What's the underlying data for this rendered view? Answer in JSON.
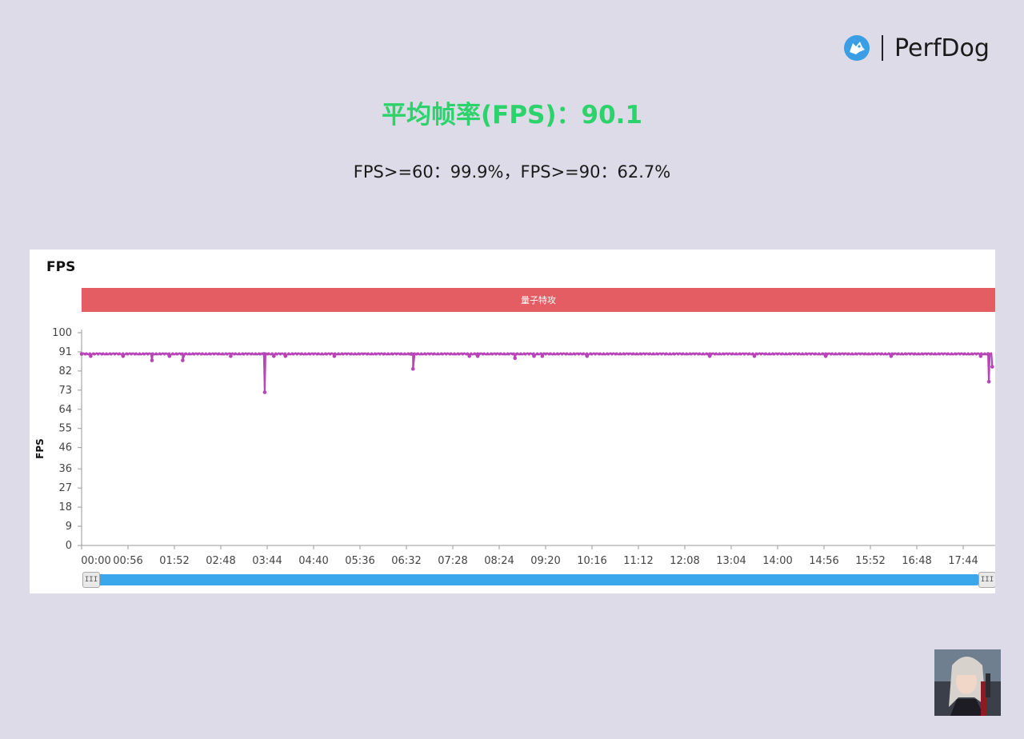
{
  "brand": {
    "name": "PerfDog",
    "icon": "perfdog-dog-icon",
    "icon_color": "#3a9ee4"
  },
  "summary": {
    "headline": "平均帧率(FPS)：90.1",
    "stats": "FPS>=60：99.9%，FPS>=90：62.7%"
  },
  "panel": {
    "title": "FPS",
    "scene_label": "量子特攻",
    "scene_color": "#e45d62"
  },
  "slider": {
    "left_handle": "III",
    "right_handle": "III",
    "range_start": 0,
    "range_end": 1
  },
  "game_avatar": {
    "icon": "game-character-avatar"
  },
  "chart_data": {
    "type": "line",
    "title": "FPS",
    "xlabel": "",
    "ylabel": "FPS",
    "ylim": [
      0,
      100
    ],
    "yticks": [
      "0",
      "9",
      "18",
      "27",
      "36",
      "46",
      "55",
      "64",
      "73",
      "82",
      "91",
      "100"
    ],
    "xticks": [
      "00:00",
      "00:56",
      "01:52",
      "02:48",
      "03:44",
      "04:40",
      "05:36",
      "06:32",
      "07:28",
      "08:24",
      "09:20",
      "10:16",
      "11:12",
      "12:08",
      "13:04",
      "14:00",
      "14:56",
      "15:52",
      "16:48",
      "17:44"
    ],
    "x_range_seconds": [
      0,
      1099
    ],
    "series": [
      {
        "color": "#b845b8",
        "baseline": 90,
        "points": [
          {
            "t": 0,
            "y": 90
          },
          {
            "t": 11,
            "y": 89
          },
          {
            "t": 50,
            "y": 89
          },
          {
            "t": 85,
            "y": 87
          },
          {
            "t": 106,
            "y": 89
          },
          {
            "t": 122,
            "y": 87
          },
          {
            "t": 180,
            "y": 89
          },
          {
            "t": 220,
            "y": 90
          },
          {
            "t": 221,
            "y": 72
          },
          {
            "t": 232,
            "y": 89
          },
          {
            "t": 246,
            "y": 89
          },
          {
            "t": 305,
            "y": 89
          },
          {
            "t": 398,
            "y": 90
          },
          {
            "t": 400,
            "y": 83
          },
          {
            "t": 468,
            "y": 89
          },
          {
            "t": 478,
            "y": 89
          },
          {
            "t": 523,
            "y": 88
          },
          {
            "t": 546,
            "y": 89
          },
          {
            "t": 556,
            "y": 89
          },
          {
            "t": 610,
            "y": 89
          },
          {
            "t": 758,
            "y": 89
          },
          {
            "t": 812,
            "y": 89
          },
          {
            "t": 898,
            "y": 89
          },
          {
            "t": 977,
            "y": 89
          },
          {
            "t": 1085,
            "y": 89
          },
          {
            "t": 1094,
            "y": 90
          },
          {
            "t": 1095,
            "y": 77
          },
          {
            "t": 1099,
            "y": 84
          }
        ]
      }
    ]
  }
}
